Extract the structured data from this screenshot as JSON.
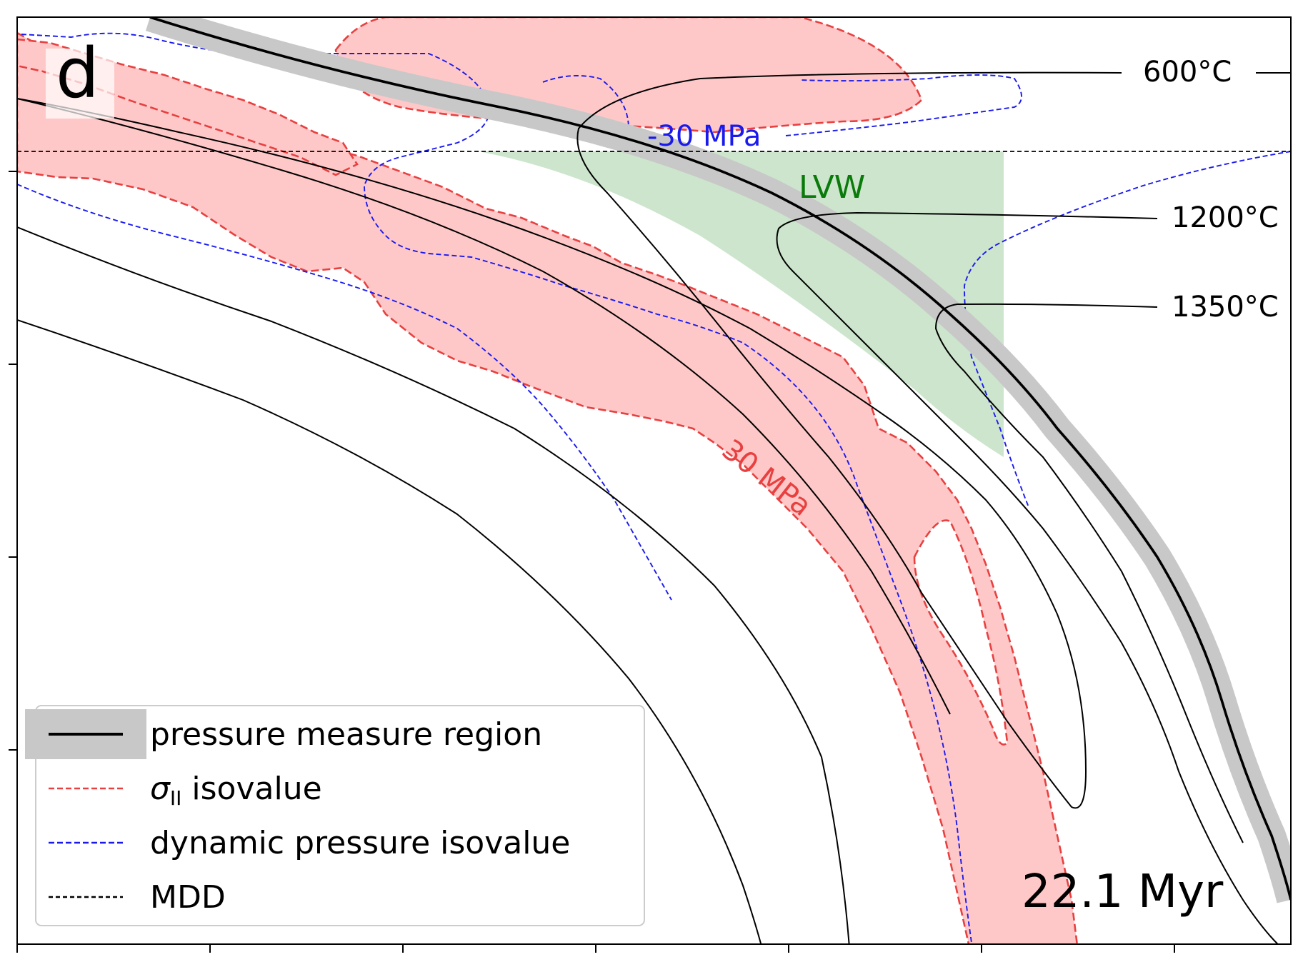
{
  "panel": {
    "letter": "d",
    "time": "22.1 Myr"
  },
  "labels": {
    "isotherm_600": "600°C",
    "isotherm_1200": "1200°C",
    "isotherm_1350": "1350°C",
    "dp_contour": "-30 MPa",
    "sigma_contour": "30 MPa",
    "lvw": "LVW"
  },
  "legend": {
    "items": [
      {
        "label": "pressure measure region"
      },
      {
        "label": "σ",
        "subscript": "II",
        "suffix": " isovalue"
      },
      {
        "label": "dynamic pressure isovalue"
      },
      {
        "label": "MDD"
      }
    ]
  },
  "colors": {
    "stress_fill": "#ffc8c8",
    "stress_line": "#e84040",
    "pressure_line": "#1a1aee",
    "measure_band": "#c8c8c8",
    "lvw_fill": "#cce5cc",
    "lvw_text": "#0a7a0a",
    "axis": "#000000"
  }
}
